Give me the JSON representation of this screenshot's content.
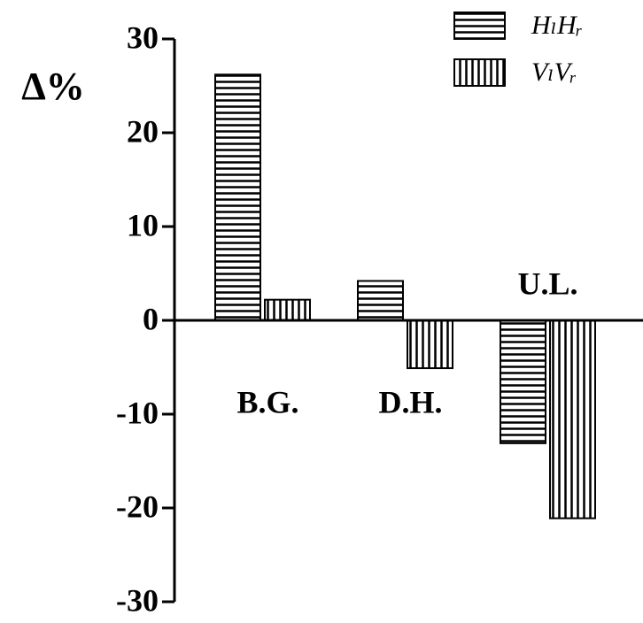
{
  "chart_data": {
    "type": "bar",
    "y_label": "Δ%",
    "categories": [
      "B.G.",
      "D.H.",
      "U.L."
    ],
    "series": [
      {
        "name": "HₗHᵣ",
        "color": "#000000",
        "hatch": "horizontal",
        "values": [
          26.2,
          4.2,
          -13.1
        ]
      },
      {
        "name": "VₗVᵣ",
        "color": "#000000",
        "hatch": "vertical",
        "values": [
          2.2,
          -5.1,
          -21.1
        ]
      }
    ],
    "ylim": [
      -30,
      30
    ],
    "yticks": [
      -30,
      -20,
      -10,
      0,
      10,
      20,
      30
    ],
    "legend": "upper right"
  }
}
